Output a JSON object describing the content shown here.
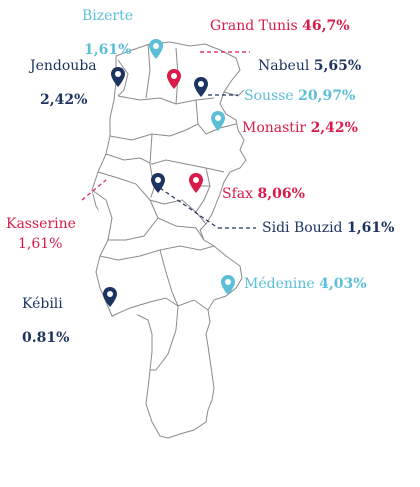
{
  "colors": {
    "navy": "#1d3461",
    "red": "#d81b4a",
    "cyan": "#5bbfd8",
    "border": "#888888"
  },
  "regions": [
    {
      "id": "bizerte",
      "name": "Bizerte",
      "percent": "1,61%",
      "color": "cyan"
    },
    {
      "id": "grand-tunis",
      "name": "Grand Tunis",
      "percent": "46,7%",
      "color": "red"
    },
    {
      "id": "jendouba",
      "name": "Jendouba",
      "percent": "2,42%",
      "color": "navy"
    },
    {
      "id": "nabeul",
      "name": "Nabeul",
      "percent": "5,65%",
      "color": "navy"
    },
    {
      "id": "sousse",
      "name": "Sousse",
      "percent": "20,97%",
      "color": "cyan"
    },
    {
      "id": "monastir",
      "name": "Monastir",
      "percent": "2,42%",
      "color": "red"
    },
    {
      "id": "sfax",
      "name": "Sfax",
      "percent": "8,06%",
      "color": "red"
    },
    {
      "id": "kasserine",
      "name": "Kasserine",
      "percent": "1,61%",
      "color": "red"
    },
    {
      "id": "sidi-bouzid",
      "name": "Sidi Bouzid",
      "percent": "1,61%",
      "color": "navy"
    },
    {
      "id": "medenine",
      "name": "Médenine",
      "percent": "4,03%",
      "color": "cyan"
    },
    {
      "id": "kebili",
      "name": "Kébili",
      "percent": "0.81%",
      "color": "navy"
    }
  ]
}
